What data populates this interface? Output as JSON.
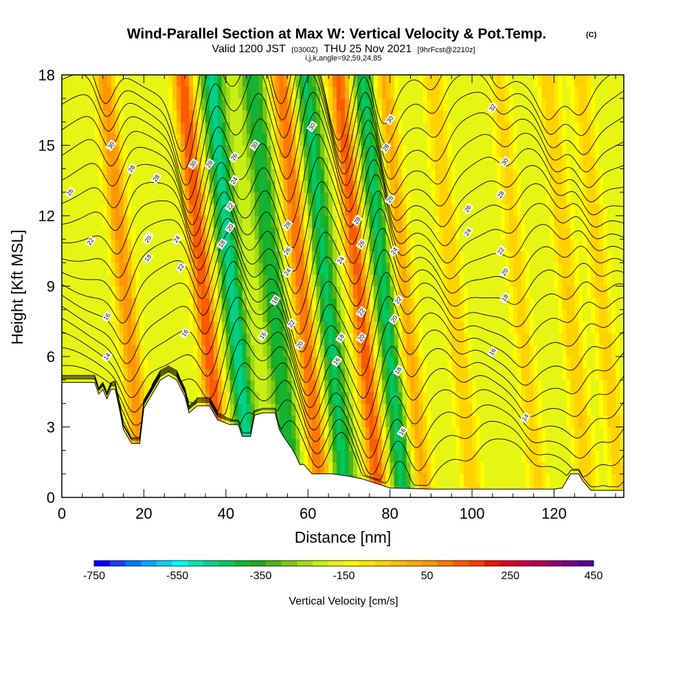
{
  "header": {
    "title": "Wind-Parallel Section at Max W: Vertical Velocity & Pot.Temp.",
    "copyright": "(C)",
    "valid_a": "Valid 1200 JST",
    "valid_b": "(0300Z)",
    "valid_c": "THU 25 Nov 2021",
    "valid_d": "[9hrFcst@2210z]",
    "indices": "i,j,k,angle=92,59,24,85"
  },
  "chart_data": {
    "type": "heatmap",
    "xlabel": "Distance [nm]",
    "ylabel": "Height [Kft MSL]",
    "xlim": [
      0,
      137
    ],
    "ylim": [
      0,
      18
    ],
    "x_ticks": [
      "0",
      "20",
      "40",
      "60",
      "80",
      "100",
      "120"
    ],
    "y_ticks": [
      "0",
      "3",
      "6",
      "9",
      "12",
      "15",
      "18"
    ],
    "colorbar": {
      "label": "Vertical Velocity [cm/s]",
      "range": [
        -750,
        450
      ],
      "step": 50,
      "tick_labels": [
        "-750",
        "-550",
        "-350",
        "-150",
        "50",
        "250",
        "450"
      ],
      "colors": [
        "#0000ff",
        "#1a3cff",
        "#0078ff",
        "#00a8ff",
        "#00d4ff",
        "#00ffff",
        "#00e6b4",
        "#00d28c",
        "#00c864",
        "#14b432",
        "#1eaa1e",
        "#50b414",
        "#78c814",
        "#a0dc14",
        "#c8ee14",
        "#e6f514",
        "#ffff00",
        "#ffe600",
        "#ffd200",
        "#ffbe00",
        "#ffaa00",
        "#ff9600",
        "#ff7800",
        "#ff5a00",
        "#ff3c00",
        "#ee1400",
        "#dc0028",
        "#c8003c",
        "#b40050",
        "#96006e",
        "#78008c",
        "#5a0096"
      ]
    },
    "w_lobes": [
      {
        "x": 17,
        "peak": 330
      },
      {
        "x": 36,
        "peak": 450
      },
      {
        "x": 43,
        "peak": -380
      },
      {
        "x": 53,
        "peak": -300
      },
      {
        "x": 60,
        "peak": 400
      },
      {
        "x": 66,
        "peak": -320
      },
      {
        "x": 74,
        "peak": 430
      },
      {
        "x": 80,
        "peak": -330
      },
      {
        "x": 85,
        "peak": 270
      },
      {
        "x": 97,
        "peak": 200
      },
      {
        "x": 113,
        "peak": 170
      },
      {
        "x": 125,
        "peak": 200
      },
      {
        "x": 133,
        "peak": 180
      }
    ],
    "isentropes": {
      "levels": [
        14,
        16,
        18,
        20,
        22,
        24,
        26,
        28,
        30,
        32
      ],
      "labels": [
        {
          "text": "30",
          "x": 12,
          "y": 15.0
        },
        {
          "text": "28",
          "x": 17,
          "y": 14.0
        },
        {
          "text": "26",
          "x": 2,
          "y": 13.0
        },
        {
          "text": "28",
          "x": 23,
          "y": 13.6
        },
        {
          "text": "30",
          "x": 32,
          "y": 14.2
        },
        {
          "text": "28",
          "x": 36,
          "y": 14.2
        },
        {
          "text": "30",
          "x": 47,
          "y": 15.0
        },
        {
          "text": "26",
          "x": 42,
          "y": 14.5
        },
        {
          "text": "24",
          "x": 42,
          "y": 13.5
        },
        {
          "text": "22",
          "x": 21,
          "y": 11.1
        },
        {
          "text": "20",
          "x": 21,
          "y": 11.0
        },
        {
          "text": "18",
          "x": 21,
          "y": 10.2
        },
        {
          "text": "24",
          "x": 28,
          "y": 11.0
        },
        {
          "text": "22",
          "x": 29,
          "y": 9.8
        },
        {
          "text": "22",
          "x": 7,
          "y": 10.9
        },
        {
          "text": "16",
          "x": 11,
          "y": 7.7
        },
        {
          "text": "14",
          "x": 11,
          "y": 6.0
        },
        {
          "text": "16",
          "x": 30,
          "y": 7.0
        },
        {
          "text": "22",
          "x": 41,
          "y": 12.4
        },
        {
          "text": "20",
          "x": 41,
          "y": 11.5
        },
        {
          "text": "18",
          "x": 39,
          "y": 10.8
        },
        {
          "text": "30",
          "x": 61,
          "y": 15.8
        },
        {
          "text": "28",
          "x": 55,
          "y": 11.6
        },
        {
          "text": "26",
          "x": 55,
          "y": 10.5
        },
        {
          "text": "24",
          "x": 55,
          "y": 9.6
        },
        {
          "text": "18",
          "x": 52,
          "y": 8.4
        },
        {
          "text": "22",
          "x": 56,
          "y": 7.4
        },
        {
          "text": "20",
          "x": 58,
          "y": 6.5
        },
        {
          "text": "16",
          "x": 49,
          "y": 6.9
        },
        {
          "text": "28",
          "x": 72,
          "y": 11.8
        },
        {
          "text": "26",
          "x": 73,
          "y": 10.8
        },
        {
          "text": "24",
          "x": 68,
          "y": 10.1
        },
        {
          "text": "22",
          "x": 73,
          "y": 7.9
        },
        {
          "text": "20",
          "x": 73,
          "y": 6.8
        },
        {
          "text": "18",
          "x": 68,
          "y": 6.8
        },
        {
          "text": "16",
          "x": 67,
          "y": 5.8
        },
        {
          "text": "30",
          "x": 80,
          "y": 16.1
        },
        {
          "text": "28",
          "x": 79,
          "y": 14.9
        },
        {
          "text": "26",
          "x": 80,
          "y": 12.7
        },
        {
          "text": "24",
          "x": 81,
          "y": 10.5
        },
        {
          "text": "22",
          "x": 82,
          "y": 8.4
        },
        {
          "text": "20",
          "x": 81,
          "y": 7.6
        },
        {
          "text": "18",
          "x": 82,
          "y": 5.4
        },
        {
          "text": "16",
          "x": 83,
          "y": 2.8
        },
        {
          "text": "32",
          "x": 105,
          "y": 16.6
        },
        {
          "text": "30",
          "x": 108,
          "y": 14.3
        },
        {
          "text": "28",
          "x": 107,
          "y": 12.9
        },
        {
          "text": "26",
          "x": 99,
          "y": 12.3
        },
        {
          "text": "24",
          "x": 99,
          "y": 11.3
        },
        {
          "text": "22",
          "x": 107,
          "y": 10.5
        },
        {
          "text": "20",
          "x": 108,
          "y": 9.6
        },
        {
          "text": "18",
          "x": 108,
          "y": 8.5
        },
        {
          "text": "16",
          "x": 105,
          "y": 6.2
        },
        {
          "text": "14",
          "x": 113,
          "y": 3.4
        }
      ]
    },
    "terrain": [
      [
        0,
        4.9
      ],
      [
        8,
        4.9
      ],
      [
        9,
        4.4
      ],
      [
        10,
        4.6
      ],
      [
        11,
        4.2
      ],
      [
        12,
        4.6
      ],
      [
        13,
        4.6
      ],
      [
        14,
        3.8
      ],
      [
        15,
        2.9
      ],
      [
        16,
        2.6
      ],
      [
        17,
        2.3
      ],
      [
        19,
        2.3
      ],
      [
        20,
        3.8
      ],
      [
        22,
        4.4
      ],
      [
        24,
        5.0
      ],
      [
        26,
        5.2
      ],
      [
        28,
        5.0
      ],
      [
        30,
        4.3
      ],
      [
        31,
        3.6
      ],
      [
        33,
        3.9
      ],
      [
        36,
        3.9
      ],
      [
        38,
        3.3
      ],
      [
        41,
        3.1
      ],
      [
        43,
        3.1
      ],
      [
        44,
        2.6
      ],
      [
        46,
        2.6
      ],
      [
        47,
        3.5
      ],
      [
        49,
        3.6
      ],
      [
        52,
        3.6
      ],
      [
        53,
        2.9
      ],
      [
        54,
        2.6
      ],
      [
        56,
        2.1
      ],
      [
        57,
        1.8
      ],
      [
        58,
        1.4
      ],
      [
        59,
        1.4
      ],
      [
        61,
        1.0
      ],
      [
        62,
        1.0
      ],
      [
        66,
        1.0
      ],
      [
        70,
        0.9
      ],
      [
        73,
        0.8
      ],
      [
        80,
        0.4
      ],
      [
        90,
        0.35
      ],
      [
        120,
        0.35
      ],
      [
        122,
        0.4
      ],
      [
        123,
        0.7
      ],
      [
        124,
        1.0
      ],
      [
        126,
        1.0
      ],
      [
        127,
        0.7
      ],
      [
        128,
        0.5
      ],
      [
        129,
        0.3
      ],
      [
        137,
        0.3
      ]
    ]
  }
}
